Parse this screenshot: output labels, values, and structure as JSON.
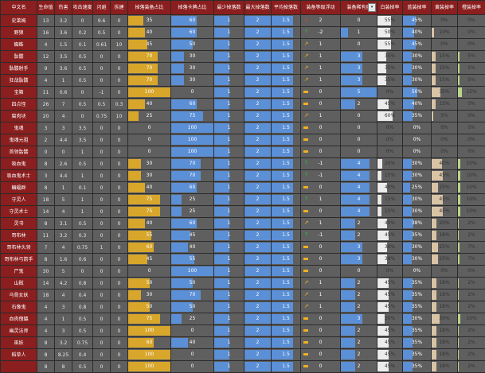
{
  "headers": [
    "中文名",
    "生命值",
    "伤害",
    "攻击速度",
    "闪避",
    "拆建",
    "掉落装备占比",
    "掉落卡牌占比",
    "最少掉落数",
    "最大掉落数",
    "平均掉落数",
    "装备等级浮动",
    "装备稀有度",
    "白装掉率",
    "蓝装掉率",
    "黄装掉率",
    "橙装掉率"
  ],
  "dropdown_icon": "▾",
  "rows": [
    {
      "name": "史莱姆",
      "hp": "13",
      "dmg": "3.2",
      "atk": "0",
      "dodge": "9.6",
      "build": "0",
      "equip": "35",
      "equip_pct": 0.35,
      "card": "60",
      "card_pct": 0.6,
      "min": "1",
      "max": "2",
      "avg": "1.5",
      "float": "2",
      "float_icon": "arrow-down",
      "rare": "0",
      "white": "55%",
      "white_pct": 0.55,
      "blue": "45%",
      "blue_pct": 0.45,
      "yellow": "0%",
      "yellow_pct": 0,
      "orange": "0%",
      "orange_pct": 0
    },
    {
      "name": "野狼",
      "hp": "16",
      "dmg": "3.6",
      "atk": "0.2",
      "dodge": "0.5",
      "build": "0",
      "equip": "40",
      "equip_pct": 0.4,
      "card": "60",
      "card_pct": 0.6,
      "min": "1",
      "max": "2",
      "avg": "1.5",
      "float": "-2",
      "float_icon": "arrow-up",
      "rare": "1",
      "white": "50%",
      "white_pct": 0.5,
      "blue": "40%",
      "blue_pct": 0.4,
      "yellow": "10%",
      "yellow_pct": 0.1,
      "orange": "0%",
      "orange_pct": 0
    },
    {
      "name": "蜘蛛",
      "hp": "4",
      "dmg": "1.5",
      "atk": "0.1",
      "dodge": "0.61",
      "build": "10",
      "equip": "45",
      "equip_pct": 0.45,
      "card": "50",
      "card_pct": 0.5,
      "min": "1",
      "max": "2",
      "avg": "1.5",
      "float": "1",
      "float_icon": "arrow-ne",
      "rare": "0",
      "white": "55%",
      "white_pct": 0.55,
      "blue": "45%",
      "blue_pct": 0.45,
      "yellow": "0%",
      "yellow_pct": 0,
      "orange": "0%",
      "orange_pct": 0
    },
    {
      "name": "骷髅",
      "hp": "12",
      "dmg": "3.5",
      "atk": "0.5",
      "dodge": "0",
      "build": "0",
      "equip": "70",
      "equip_pct": 0.7,
      "card": "30",
      "card_pct": 0.3,
      "min": "1",
      "max": "2",
      "avg": "1.5",
      "float": "1",
      "float_icon": "arrow-ne",
      "rare": "3",
      "white": "35%",
      "white_pct": 0.35,
      "blue": "30%",
      "blue_pct": 0.3,
      "yellow": "15%",
      "yellow_pct": 0.15,
      "orange": "5%",
      "orange_pct": 0.05
    },
    {
      "name": "骷髅射手",
      "hp": "9",
      "dmg": "3.6",
      "atk": "0.5",
      "dodge": "0",
      "build": "0",
      "equip": "70",
      "equip_pct": 0.7,
      "card": "30",
      "card_pct": 0.3,
      "min": "1",
      "max": "2",
      "avg": "1.5",
      "float": "1",
      "float_icon": "arrow-ne",
      "rare": "3",
      "white": "35%",
      "white_pct": 0.35,
      "blue": "30%",
      "blue_pct": 0.3,
      "yellow": "15%",
      "yellow_pct": 0.15,
      "orange": "5%",
      "orange_pct": 0.05
    },
    {
      "name": "狂战骷髅",
      "hp": "4",
      "dmg": "1",
      "atk": "0.5",
      "dodge": "0",
      "build": "0",
      "equip": "70",
      "equip_pct": 0.7,
      "card": "30",
      "card_pct": 0.3,
      "min": "1",
      "max": "2",
      "avg": "1.5",
      "float": "1",
      "float_icon": "arrow-ne",
      "rare": "3",
      "white": "35%",
      "white_pct": 0.35,
      "blue": "30%",
      "blue_pct": 0.3,
      "yellow": "15%",
      "yellow_pct": 0.15,
      "orange": "5%",
      "orange_pct": 0.05
    },
    {
      "name": "宝箱",
      "hp": "11",
      "dmg": "0.6",
      "atk": "0",
      "dodge": "-1",
      "build": "0",
      "equip": "100",
      "equip_pct": 1.0,
      "card": "0",
      "card_pct": 0,
      "min": "1",
      "max": "2",
      "avg": "1.5",
      "float": "0",
      "float_icon": "flat",
      "rare": "5",
      "white": "0%",
      "white_pct": 0,
      "blue": "50%",
      "blue_pct": 0.5,
      "yellow": "35%",
      "yellow_pct": 0.35,
      "orange": "15%",
      "orange_pct": 0.15
    },
    {
      "name": "四点怪",
      "hp": "26",
      "dmg": "7",
      "atk": "0.5",
      "dodge": "0.5",
      "build": "0.3",
      "equip": "40",
      "equip_pct": 0.4,
      "card": "60",
      "card_pct": 0.6,
      "min": "1",
      "max": "2",
      "avg": "1.5",
      "float": "0",
      "float_icon": "flat",
      "rare": "2",
      "white": "45%",
      "white_pct": 0.45,
      "blue": "40%",
      "blue_pct": 0.4,
      "yellow": "15%",
      "yellow_pct": 0.15,
      "orange": "0%",
      "orange_pct": 0
    },
    {
      "name": "腐肉块",
      "hp": "20",
      "dmg": "4",
      "atk": "0",
      "dodge": "0.75",
      "build": "10",
      "equip": "25",
      "equip_pct": 0.25,
      "card": "75",
      "card_pct": 0.75,
      "min": "1",
      "max": "2",
      "avg": "1.5",
      "float": "1",
      "float_icon": "arrow-ne",
      "rare": "0",
      "white": "60%",
      "white_pct": 0.6,
      "blue": "35%",
      "blue_pct": 0.35,
      "yellow": "5%",
      "yellow_pct": 0.05,
      "orange": "0%",
      "orange_pct": 0
    },
    {
      "name": "鬼魂",
      "hp": "3",
      "dmg": "3",
      "atk": "3.5",
      "dodge": "0",
      "build": "0",
      "equip": "0",
      "equip_pct": 0,
      "card": "100",
      "card_pct": 1.0,
      "min": "1",
      "max": "2",
      "avg": "1.5",
      "float": "0",
      "float_icon": "flat",
      "rare": "0",
      "white": "0%",
      "white_pct": 0,
      "blue": "0%",
      "blue_pct": 0,
      "yellow": "0%",
      "yellow_pct": 0,
      "orange": "0%",
      "orange_pct": 0
    },
    {
      "name": "鬼魂元祖",
      "hp": "2",
      "dmg": "4.4",
      "atk": "3.5",
      "dodge": "0",
      "build": "0",
      "equip": "0",
      "equip_pct": 0,
      "card": "100",
      "card_pct": 1.0,
      "min": "1",
      "max": "2",
      "avg": "1.5",
      "float": "0",
      "float_icon": "flat",
      "rare": "0",
      "white": "0%",
      "white_pct": 0,
      "blue": "0%",
      "blue_pct": 0,
      "yellow": "0%",
      "yellow_pct": 0,
      "orange": "0%",
      "orange_pct": 0
    },
    {
      "name": "首领骷髅",
      "hp": "0",
      "dmg": "0",
      "atk": "1",
      "dodge": "0",
      "build": "0",
      "equip": "0",
      "equip_pct": 0,
      "card": "100",
      "card_pct": 1.0,
      "min": "1",
      "max": "2",
      "avg": "1.5",
      "float": "0",
      "float_icon": "flat",
      "rare": "0",
      "white": "0%",
      "white_pct": 0,
      "blue": "0%",
      "blue_pct": 0,
      "yellow": "0%",
      "yellow_pct": 0,
      "orange": "0%",
      "orange_pct": 0
    },
    {
      "name": "吸血鬼",
      "hp": "8",
      "dmg": "2.6",
      "atk": "0.5",
      "dodge": "0",
      "build": "0",
      "equip": "30",
      "equip_pct": 0.3,
      "card": "70",
      "card_pct": 0.7,
      "min": "1",
      "max": "2",
      "avg": "1.5",
      "float": "-1",
      "float_icon": "arrow-up",
      "rare": "4",
      "white": "20%",
      "white_pct": 0.2,
      "blue": "30%",
      "blue_pct": 0.3,
      "yellow": "40%",
      "yellow_pct": 0.4,
      "orange": "10%",
      "orange_pct": 0.1
    },
    {
      "name": "吸血鬼术士",
      "hp": "3",
      "dmg": "4.4",
      "atk": "1",
      "dodge": "0",
      "build": "0",
      "equip": "30",
      "equip_pct": 0.3,
      "card": "70",
      "card_pct": 0.7,
      "min": "1",
      "max": "2",
      "avg": "1.5",
      "float": "-1",
      "float_icon": "arrow-up",
      "rare": "4",
      "white": "15%",
      "white_pct": 0.15,
      "blue": "30%",
      "blue_pct": 0.3,
      "yellow": "45%",
      "yellow_pct": 0.45,
      "orange": "10%",
      "orange_pct": 0.1
    },
    {
      "name": "蝙蝠群",
      "hp": "8",
      "dmg": "1",
      "atk": "0.1",
      "dodge": "0",
      "build": "0",
      "equip": "40",
      "equip_pct": 0.4,
      "card": "60",
      "card_pct": 0.6,
      "min": "1",
      "max": "2",
      "avg": "1.5",
      "float": "0",
      "float_icon": "flat",
      "rare": "4",
      "white": "40%",
      "white_pct": 0.4,
      "blue": "25%",
      "blue_pct": 0.25,
      "yellow": "25%",
      "yellow_pct": 0.25,
      "orange": "10%",
      "orange_pct": 0.1
    },
    {
      "name": "守灵人",
      "hp": "18",
      "dmg": "5",
      "atk": "1",
      "dodge": "0",
      "build": "0",
      "equip": "75",
      "equip_pct": 0.75,
      "card": "25",
      "card_pct": 0.25,
      "min": "1",
      "max": "2",
      "avg": "1.5",
      "float": "1",
      "float_icon": "arrow-up",
      "rare": "4",
      "white": "15%",
      "white_pct": 0.15,
      "blue": "30%",
      "blue_pct": 0.3,
      "yellow": "45%",
      "yellow_pct": 0.45,
      "orange": "10%",
      "orange_pct": 0.1
    },
    {
      "name": "守灵术士",
      "hp": "14",
      "dmg": "4",
      "atk": "1",
      "dodge": "0",
      "build": "0",
      "equip": "75",
      "equip_pct": 0.75,
      "card": "25",
      "card_pct": 0.25,
      "min": "1",
      "max": "2",
      "avg": "1.5",
      "float": "0",
      "float_icon": "flat",
      "rare": "4",
      "white": "15%",
      "white_pct": 0.15,
      "blue": "30%",
      "blue_pct": 0.3,
      "yellow": "45%",
      "yellow_pct": 0.45,
      "orange": "10%",
      "orange_pct": 0.1
    },
    {
      "name": "灵书",
      "hp": "8",
      "dmg": "3.1",
      "atk": "0.5",
      "dodge": "0",
      "build": "0",
      "equip": "40",
      "equip_pct": 0.4,
      "card": "60",
      "card_pct": 0.6,
      "min": "1",
      "max": "2",
      "avg": "1.5",
      "float": "1",
      "float_icon": "arrow-ne",
      "rare": "2",
      "white": "40%",
      "white_pct": 0.4,
      "blue": "38%",
      "blue_pct": 0.38,
      "yellow": "20%",
      "yellow_pct": 0.2,
      "orange": "2%",
      "orange_pct": 0.02
    },
    {
      "name": "哥布林",
      "hp": "11",
      "dmg": "3.2",
      "atk": "0.3",
      "dodge": "0",
      "build": "0",
      "equip": "55",
      "equip_pct": 0.55,
      "card": "45",
      "card_pct": 0.45,
      "min": "1",
      "max": "2",
      "avg": "1.5",
      "float": "-1",
      "float_icon": "arrow-up",
      "rare": "2",
      "white": "45%",
      "white_pct": 0.45,
      "blue": "35%",
      "blue_pct": 0.35,
      "yellow": "18%",
      "yellow_pct": 0.18,
      "orange": "2%",
      "orange_pct": 0.02
    },
    {
      "name": "哥布林头领",
      "hp": "7",
      "dmg": "4",
      "atk": "0.75",
      "dodge": "1",
      "build": "0",
      "equip": "60",
      "equip_pct": 0.6,
      "card": "40",
      "card_pct": 0.4,
      "min": "1",
      "max": "2",
      "avg": "1.5",
      "float": "0",
      "float_icon": "flat",
      "rare": "3",
      "white": "38%",
      "white_pct": 0.38,
      "blue": "30%",
      "blue_pct": 0.3,
      "yellow": "25%",
      "yellow_pct": 0.25,
      "orange": "7%",
      "orange_pct": 0.07
    },
    {
      "name": "哥布林弓箭手",
      "hp": "8",
      "dmg": "1.6",
      "atk": "0.6",
      "dodge": "0",
      "build": "0",
      "equip": "45",
      "equip_pct": 0.45,
      "card": "55",
      "card_pct": 0.55,
      "min": "1",
      "max": "2",
      "avg": "1.5",
      "float": "0",
      "float_icon": "flat",
      "rare": "3",
      "white": "38%",
      "white_pct": 0.38,
      "blue": "30%",
      "blue_pct": 0.3,
      "yellow": "25%",
      "yellow_pct": 0.25,
      "orange": "7%",
      "orange_pct": 0.07
    },
    {
      "name": "尸鬼",
      "hp": "30",
      "dmg": "5",
      "atk": "0",
      "dodge": "0",
      "build": "0",
      "equip": "0",
      "equip_pct": 0,
      "card": "100",
      "card_pct": 1.0,
      "min": "1",
      "max": "2",
      "avg": "1.5",
      "float": "0",
      "float_icon": "flat",
      "rare": "0",
      "white": "0%",
      "white_pct": 0,
      "blue": "0%",
      "blue_pct": 0,
      "yellow": "0%",
      "yellow_pct": 0,
      "orange": "0%",
      "orange_pct": 0
    },
    {
      "name": "山贼",
      "hp": "14",
      "dmg": "4.2",
      "atk": "0.8",
      "dodge": "0",
      "build": "0",
      "equip": "50",
      "equip_pct": 0.5,
      "card": "50",
      "card_pct": 0.5,
      "min": "1",
      "max": "2",
      "avg": "1.5",
      "float": "1",
      "float_icon": "arrow-ne",
      "rare": "2",
      "white": "45%",
      "white_pct": 0.45,
      "blue": "35%",
      "blue_pct": 0.35,
      "yellow": "18%",
      "yellow_pct": 0.18,
      "orange": "2%",
      "orange_pct": 0.02
    },
    {
      "name": "乌骨女妖",
      "hp": "18",
      "dmg": "4",
      "atk": "0.4",
      "dodge": "0",
      "build": "0",
      "equip": "30",
      "equip_pct": 0.3,
      "card": "70",
      "card_pct": 0.7,
      "min": "1",
      "max": "2",
      "avg": "1.5",
      "float": "1",
      "float_icon": "arrow-ne",
      "rare": "2",
      "white": "45%",
      "white_pct": 0.45,
      "blue": "35%",
      "blue_pct": 0.35,
      "yellow": "18%",
      "yellow_pct": 0.18,
      "orange": "2%",
      "orange_pct": 0.02
    },
    {
      "name": "石像鬼",
      "hp": "4",
      "dmg": "3",
      "atk": "0.8",
      "dodge": "0",
      "build": "0",
      "equip": "50",
      "equip_pct": 0.5,
      "card": "50",
      "card_pct": 0.5,
      "min": "1",
      "max": "2",
      "avg": "1.5",
      "float": "1",
      "float_icon": "arrow-ne",
      "rare": "2",
      "white": "45%",
      "white_pct": 0.45,
      "blue": "35%",
      "blue_pct": 0.35,
      "yellow": "18%",
      "yellow_pct": 0.18,
      "orange": "2%",
      "orange_pct": 0.02
    },
    {
      "name": "血肉傀儡",
      "hp": "4",
      "dmg": "1",
      "atk": "0.5",
      "dodge": "0",
      "build": "0",
      "equip": "75",
      "equip_pct": 0.75,
      "card": "25",
      "card_pct": 0.25,
      "min": "1",
      "max": "2",
      "avg": "1.5",
      "float": "0",
      "float_icon": "flat",
      "rare": "3",
      "white": "30%",
      "white_pct": 0.3,
      "blue": "30%",
      "blue_pct": 0.3,
      "yellow": "30%",
      "yellow_pct": 0.3,
      "orange": "10%",
      "orange_pct": 0.1
    },
    {
      "name": "幽灵法师",
      "hp": "4",
      "dmg": "3",
      "atk": "0.5",
      "dodge": "0",
      "build": "0",
      "equip": "100",
      "equip_pct": 1.0,
      "card": "0",
      "card_pct": 0,
      "min": "1",
      "max": "2",
      "avg": "1.5",
      "float": "0",
      "float_icon": "flat",
      "rare": "2",
      "white": "45%",
      "white_pct": 0.45,
      "blue": "35%",
      "blue_pct": 0.35,
      "yellow": "18%",
      "yellow_pct": 0.18,
      "orange": "2%",
      "orange_pct": 0.02
    },
    {
      "name": "巫妖",
      "hp": "8",
      "dmg": "3.2",
      "atk": "0.75",
      "dodge": "0",
      "build": "0",
      "equip": "60",
      "equip_pct": 0.6,
      "card": "40",
      "card_pct": 0.4,
      "min": "1",
      "max": "2",
      "avg": "1.5",
      "float": "0",
      "float_icon": "flat",
      "rare": "2",
      "white": "45%",
      "white_pct": 0.45,
      "blue": "35%",
      "blue_pct": 0.35,
      "yellow": "18%",
      "yellow_pct": 0.18,
      "orange": "2%",
      "orange_pct": 0.02
    },
    {
      "name": "稻草人",
      "hp": "8",
      "dmg": "8.25",
      "atk": "0.4",
      "dodge": "0",
      "build": "0",
      "equip": "100",
      "equip_pct": 1.0,
      "card": "0",
      "card_pct": 0,
      "min": "1",
      "max": "2",
      "avg": "1.5",
      "float": "0",
      "float_icon": "flat",
      "rare": "2",
      "white": "45%",
      "white_pct": 0.45,
      "blue": "35%",
      "blue_pct": 0.35,
      "yellow": "18%",
      "yellow_pct": 0.18,
      "orange": "2%",
      "orange_pct": 0.02
    },
    {
      "name": "",
      "hp": "8",
      "dmg": "8",
      "atk": "0.5",
      "dodge": "0",
      "build": "0",
      "equip": "100",
      "equip_pct": 1.0,
      "card": "0",
      "card_pct": 0,
      "min": "1",
      "max": "2",
      "avg": "1.5",
      "float": "0",
      "float_icon": "flat",
      "rare": "2",
      "white": "45%",
      "white_pct": 0.45,
      "blue": "35%",
      "blue_pct": 0.35,
      "yellow": "18%",
      "yellow_pct": 0.18,
      "orange": "2%",
      "orange_pct": 0.02
    }
  ],
  "colors": {
    "header_bg": "#8b1e1e",
    "name_bg": "#8b1e1e",
    "cell_bg": "#5f5f5f",
    "bar_blue": "#5b8fd6",
    "bar_gold": "#d7a62b",
    "bar_white": "#ececec",
    "bar_tan": "#d9c3a5",
    "bar_green": "#b8d68a",
    "arrow_up": "#2fb44a",
    "arrow_down": "#e03a2e",
    "arrow_side": "#f0b020"
  }
}
